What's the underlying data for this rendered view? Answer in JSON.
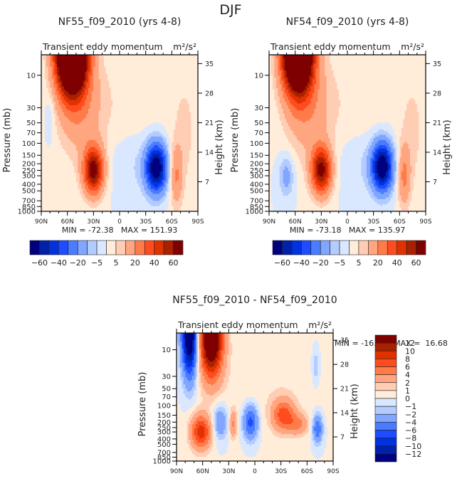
{
  "figure_title": "DJF",
  "palette": [
    "#00007f",
    "#0021a8",
    "#0032e0",
    "#1f4cff",
    "#4a7cff",
    "#80a6ff",
    "#b3cbff",
    "#d9e8ff",
    "#ffecd9",
    "#ffcdb3",
    "#ffa680",
    "#ff7c4a",
    "#ff4c1f",
    "#e03200",
    "#a82100",
    "#7f0000"
  ],
  "chart_data": [
    {
      "type": "heatmap",
      "panel": "top-left",
      "title": "NF55_f09_2010 (yrs 4-8)",
      "subtitle_left": "Transient eddy momentum",
      "units": "m²/s²",
      "xlabel": "",
      "ylabel": "Pressure (mb)",
      "y2label": "Height (km)",
      "x_ticks": [
        "90N",
        "60N",
        "30N",
        "0",
        "30S",
        "60S",
        "90S"
      ],
      "xlim": [
        90,
        -90
      ],
      "y_ticks": [
        10,
        30,
        50,
        70,
        100,
        150,
        200,
        250,
        300,
        400,
        500,
        700,
        850,
        1000
      ],
      "ylim_mb": [
        1000,
        5
      ],
      "y_scale": "log",
      "y2_ticks": [
        7,
        14,
        21,
        28,
        35
      ],
      "stats": "MIN = -72.38   MAX = 151.93",
      "min": -72.38,
      "max": 151.93,
      "colorbar": {
        "orientation": "horizontal",
        "labels": [
          "-60",
          "-40",
          "-20",
          "-5",
          "5",
          "20",
          "40",
          "60"
        ]
      },
      "features": [
        {
          "lat": 55,
          "p": 6,
          "value": 151.93,
          "desc": "stratospheric NH maximum"
        },
        {
          "lat": 30,
          "p": 250,
          "value": 60,
          "desc": "NH subtropical jet maximum"
        },
        {
          "lat": -42,
          "p": 250,
          "value": -72.38,
          "desc": "SH midlatitude minimum"
        },
        {
          "lat": -65,
          "p": 300,
          "value": 20,
          "desc": "SH high-latitude maximum"
        }
      ]
    },
    {
      "type": "heatmap",
      "panel": "top-right",
      "title": "NF54_f09_2010 (yrs 4-8)",
      "subtitle_left": "Transient eddy momentum",
      "units": "m²/s²",
      "xlabel": "",
      "ylabel": "Pressure (mb)",
      "y2label": "Height (km)",
      "x_ticks": [
        "90N",
        "60N",
        "30N",
        "0",
        "30S",
        "60S",
        "90S"
      ],
      "xlim": [
        90,
        -90
      ],
      "y_ticks": [
        10,
        30,
        50,
        70,
        100,
        150,
        200,
        250,
        300,
        400,
        500,
        700,
        850,
        1000
      ],
      "ylim_mb": [
        1000,
        5
      ],
      "y_scale": "log",
      "y2_ticks": [
        7,
        14,
        21,
        28,
        35
      ],
      "stats": "MIN = -73.18   MAX = 135.97",
      "min": -73.18,
      "max": 135.97,
      "colorbar": {
        "orientation": "horizontal",
        "labels": [
          "-60",
          "-40",
          "-20",
          "-5",
          "5",
          "20",
          "40",
          "60"
        ]
      },
      "features": [
        {
          "lat": 57,
          "p": 6,
          "value": 135.97,
          "desc": "stratospheric NH maximum"
        },
        {
          "lat": 30,
          "p": 250,
          "value": 60,
          "desc": "NH subtropical jet maximum"
        },
        {
          "lat": -40,
          "p": 220,
          "value": -73.18,
          "desc": "SH midlatitude minimum"
        },
        {
          "lat": -65,
          "p": 300,
          "value": 20,
          "desc": "SH high-latitude maximum"
        },
        {
          "lat": 70,
          "p": 300,
          "value": -10,
          "desc": "NH high-latitude minimum"
        }
      ]
    },
    {
      "type": "heatmap",
      "panel": "bottom",
      "title": "NF55_f09_2010 - NF54_f09_2010",
      "subtitle_left": "Transient eddy momentum",
      "units": "m²/s²",
      "xlabel": "",
      "ylabel": "Pressure (mb)",
      "y2label": "Height (km)",
      "x_ticks": [
        "90N",
        "60N",
        "30N",
        "0",
        "30S",
        "60S",
        "90S"
      ],
      "xlim": [
        90,
        -90
      ],
      "y_ticks": [
        10,
        30,
        50,
        70,
        100,
        150,
        200,
        250,
        300,
        400,
        500,
        700,
        850,
        1000
      ],
      "ylim_mb": [
        1000,
        5
      ],
      "y_scale": "log",
      "y2_ticks": [
        7,
        14,
        21,
        28,
        35
      ],
      "stats": "MIN = -16.03   MAX =  16.68",
      "min": -16.03,
      "max": 16.68,
      "colorbar": {
        "orientation": "vertical",
        "labels": [
          "12",
          "10",
          "8",
          "6",
          "4",
          "2",
          "1",
          "0",
          "-1",
          "-2",
          "-4",
          "-6",
          "-8",
          "-10",
          "-12"
        ]
      },
      "features": [
        {
          "lat": 75,
          "p": 6,
          "value": -16.03,
          "desc": "NH polar stratospheric minimum"
        },
        {
          "lat": 50,
          "p": 8,
          "value": 16.68,
          "desc": "NH midlatitude stratospheric maximum"
        },
        {
          "lat": 62,
          "p": 300,
          "value": 8,
          "desc": "NH tropospheric maximum"
        },
        {
          "lat": 5,
          "p": 200,
          "value": -6,
          "desc": "equatorial minimum"
        },
        {
          "lat": -33,
          "p": 150,
          "value": 6,
          "desc": "SH subtropical maximum"
        },
        {
          "lat": -72,
          "p": 250,
          "value": -5,
          "desc": "SH high-latitude minimum"
        }
      ]
    }
  ]
}
